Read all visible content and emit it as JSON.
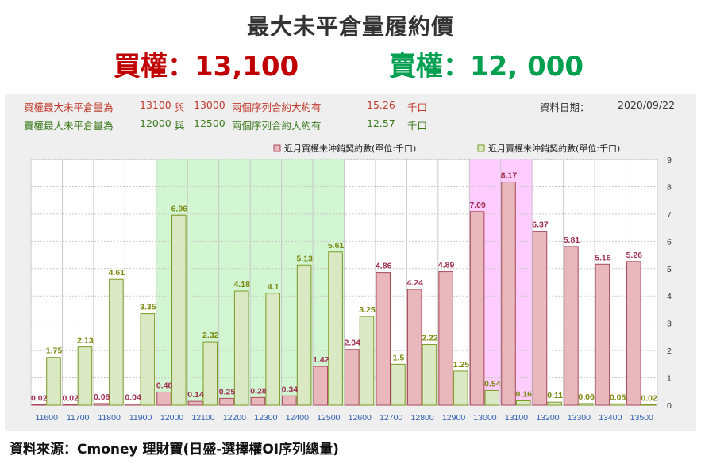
{
  "header": {
    "title": "最大未平倉量履約價",
    "call_line": "買權：13,100",
    "put_line": "賣權：12, 000"
  },
  "info": {
    "call_label": "買權最大未平倉量為",
    "call_strike1": "13100",
    "call_and": "與",
    "call_strike2": "13000",
    "call_desc": "兩個序列合約大約有",
    "call_amount": "15.26",
    "call_unit": "千口",
    "put_label": "賣權最大未平倉量為",
    "put_strike1": "12000",
    "put_and": "與",
    "put_strike2": "12500",
    "put_desc": "兩個序列合約大約有",
    "put_amount": "12.57",
    "put_unit": "千口",
    "date_label": "資料日期：",
    "date_value": "2020/09/22"
  },
  "colors": {
    "call_fill": "#e8b8bd",
    "call_stroke": "#a8485a",
    "put_fill": "#dbe8c4",
    "put_stroke": "#7a9a20",
    "call_label": "#a03050",
    "put_label": "#7a8a10",
    "highlight_green": "#d2f5d2",
    "highlight_pink": "#ffccff",
    "tick": "#2a5db0"
  },
  "chart_data": {
    "type": "bar",
    "categories": [
      "11600",
      "11700",
      "11800",
      "11900",
      "12000",
      "12100",
      "12200",
      "12300",
      "12400",
      "12500",
      "12600",
      "12700",
      "12800",
      "12900",
      "13000",
      "13100",
      "13200",
      "13300",
      "13400",
      "13500"
    ],
    "series": [
      {
        "name": "近月買權未沖銷契約數(單位:千口)",
        "values": [
          0.02,
          0.02,
          0.06,
          0.04,
          0.48,
          0.14,
          0.25,
          0.28,
          0.34,
          1.42,
          2.04,
          4.86,
          4.24,
          4.89,
          7.09,
          8.17,
          6.37,
          5.81,
          5.16,
          5.26
        ]
      },
      {
        "name": "近月賣權未沖銷契約數(單位:千口)",
        "values": [
          1.75,
          2.13,
          4.61,
          3.35,
          6.96,
          2.32,
          4.18,
          4.1,
          5.13,
          5.61,
          3.25,
          1.5,
          2.22,
          1.25,
          0.54,
          0.16,
          0.11,
          0.06,
          0.05,
          0.02
        ]
      }
    ],
    "data_labels": {
      "call": [
        "0.02",
        "0.02",
        "0.06",
        "0.04",
        "0.48",
        "0.14",
        "0.25",
        "0.28",
        "0.34",
        "1.42",
        "2.04",
        "4.86",
        "4.24",
        "4.89",
        "7.09",
        "8.17",
        "6.37",
        "5.81",
        "5.16",
        "5.26"
      ],
      "put": [
        "1.75",
        "2.13",
        "4.61",
        "3.35",
        "6.96",
        "2.32",
        "4.18",
        "4.1",
        "5.13",
        "5.61",
        "3.25",
        "1.5",
        "2.22",
        "1.25",
        "0.54",
        "0.16",
        "0.11",
        "0.06",
        "0.05",
        "0.02"
      ]
    },
    "ylim": [
      0,
      9
    ],
    "yticks": [
      "0",
      "1",
      "2",
      "3",
      "4",
      "5",
      "6",
      "7",
      "8",
      "9"
    ],
    "highlight_green_range": [
      "12000",
      "12500"
    ],
    "highlight_pink_range": [
      "13000",
      "13100"
    ],
    "grid": true,
    "legend": "top-right"
  },
  "source": "資料來源：Cmoney 理財寶(日盛-選擇權OI序列總量)"
}
